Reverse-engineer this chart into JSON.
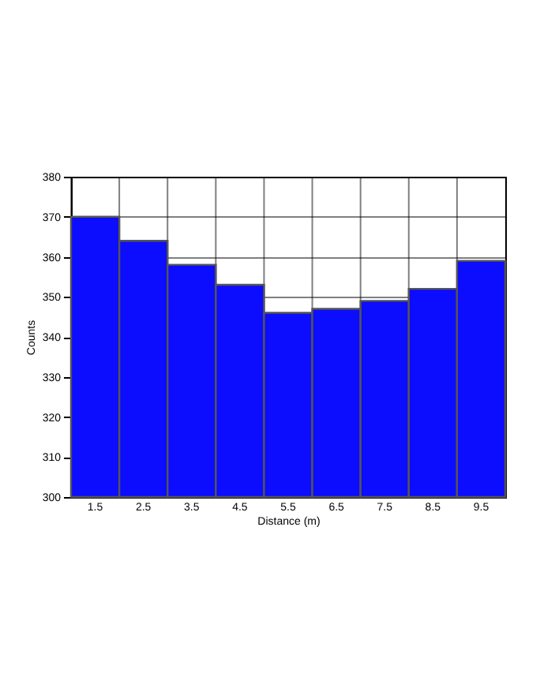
{
  "chart_data": {
    "type": "bar",
    "xlabel": "Distance (m)",
    "ylabel": "Counts",
    "categories": [
      "1.5",
      "2.5",
      "3.5",
      "4.5",
      "5.5",
      "6.5",
      "7.5",
      "8.5",
      "9.5"
    ],
    "values": [
      370,
      364,
      358,
      353,
      346,
      347,
      349,
      352,
      359
    ],
    "color": "#0c0cff",
    "ylim": [
      300,
      380
    ],
    "yticks": [
      300,
      310,
      320,
      330,
      340,
      350,
      360,
      370,
      380
    ],
    "grid": true
  }
}
